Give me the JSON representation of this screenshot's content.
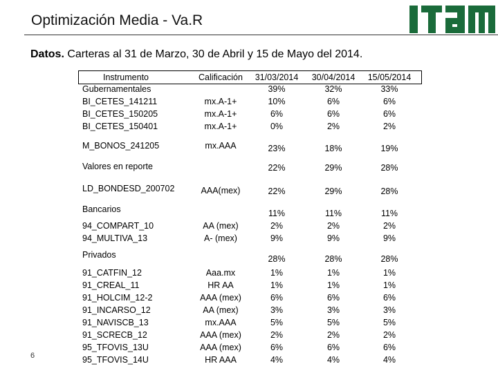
{
  "header": {
    "title": "Optimización Media - Va.R",
    "logo_text": "ITAM"
  },
  "subtitle": {
    "bold": "Datos.",
    "rest": " Carteras al 31 de Marzo, 30 de Abril y 15 de Mayo del 2014."
  },
  "page_number": "6",
  "colors": {
    "logo": "#1a6b3a"
  },
  "table": {
    "headers": [
      "Instrumento",
      "Calificación",
      "31/03/2014",
      "30/04/2014",
      "15/05/2014"
    ],
    "rows": [
      {
        "inst": "Gubernamentales",
        "cal": "",
        "d1": "39%",
        "d2": "32%",
        "d3": "33%"
      },
      {
        "inst": "BI_CETES_141211",
        "cal": "mx.A-1+",
        "d1": "10%",
        "d2": "6%",
        "d3": "6%"
      },
      {
        "inst": "BI_CETES_150205",
        "cal": "mx.A-1+",
        "d1": "6%",
        "d2": "6%",
        "d3": "6%"
      },
      {
        "inst": "BI_CETES_150401",
        "cal": "mx.A-1+",
        "d1": "0%",
        "d2": "2%",
        "d3": "2%"
      },
      {
        "inst": "M_BONOS_241205",
        "cal": "mx.AAA",
        "d1": "23%",
        "d2": "18%",
        "d3": "19%"
      },
      {
        "inst": "Valores en reporte",
        "cal": "",
        "d1": "22%",
        "d2": "29%",
        "d3": "28%"
      },
      {
        "inst": "LD_BONDESD_200702",
        "cal": "AAA(mex)",
        "d1": "22%",
        "d2": "29%",
        "d3": "28%"
      },
      {
        "inst": "Bancarios",
        "cal": "",
        "d1": "11%",
        "d2": "11%",
        "d3": "11%"
      },
      {
        "inst": "94_COMPART_10",
        "cal": "AA (mex)",
        "d1": "2%",
        "d2": "2%",
        "d3": "2%"
      },
      {
        "inst": "94_MULTIVA_13",
        "cal": "A- (mex)",
        "d1": "9%",
        "d2": "9%",
        "d3": "9%"
      },
      {
        "inst": "Privados",
        "cal": "",
        "d1": "28%",
        "d2": "28%",
        "d3": "28%"
      },
      {
        "inst": "91_CATFIN_12",
        "cal": "Aaa.mx",
        "d1": "1%",
        "d2": "1%",
        "d3": "1%"
      },
      {
        "inst": "91_CREAL_11",
        "cal": "HR AA",
        "d1": "1%",
        "d2": "1%",
        "d3": "1%"
      },
      {
        "inst": "91_HOLCIM_12-2",
        "cal": "AAA (mex)",
        "d1": "6%",
        "d2": "6%",
        "d3": "6%"
      },
      {
        "inst": "91_INCARSO_12",
        "cal": "AA (mex)",
        "d1": "3%",
        "d2": "3%",
        "d3": "3%"
      },
      {
        "inst": "91_NAVISCB_13",
        "cal": "mx.AAA",
        "d1": "5%",
        "d2": "5%",
        "d3": "5%"
      },
      {
        "inst": "91_SCRECB_12",
        "cal": "AAA (mex)",
        "d1": "2%",
        "d2": "2%",
        "d3": "2%"
      },
      {
        "inst": "95_TFOVIS_13U",
        "cal": "AAA (mex)",
        "d1": "6%",
        "d2": "6%",
        "d3": "6%"
      },
      {
        "inst": "95_TFOVIS_14U",
        "cal": "HR AAA",
        "d1": "4%",
        "d2": "4%",
        "d3": "4%"
      }
    ]
  }
}
